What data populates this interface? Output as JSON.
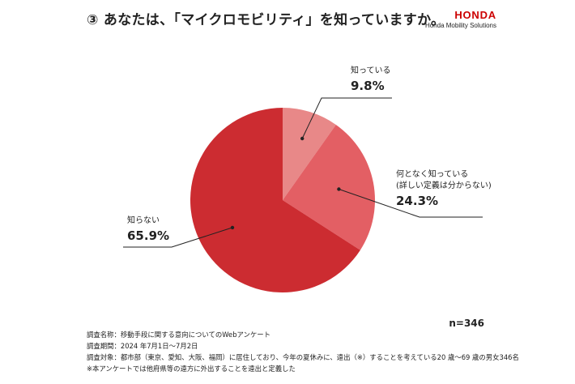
{
  "title": "③ あなたは、「マイクロモビリティ」を知っていますか。",
  "brand": {
    "logo": "HONDA",
    "subtitle": "Honda Mobility Solutions"
  },
  "chart_data": {
    "type": "pie",
    "title": "③ あなたは、「マイクロモビリティ」を知っていますか。",
    "categories": [
      "知っている",
      "何となく知っている\n(詳しい定義は分からない)",
      "知らない"
    ],
    "values": [
      9.8,
      24.3,
      65.9
    ],
    "value_labels": [
      "9.8%",
      "24.3%",
      "65.9%"
    ],
    "colors": [
      "#e88888",
      "#e35f64",
      "#cc2c31"
    ],
    "start": "12 o'clock, clockwise",
    "legend": "none (callout labels)"
  },
  "sample_size": "n=346",
  "notes": [
    "調査名称：移動手段に関する意向についてのWebアンケート",
    "調査期間：2024 年7月1日〜7月2日",
    "調査対象：都市部（東京、愛知、大阪、福岡）に居住しており、今年の夏休みに、遠出（※）することを考えている20 歳〜69 歳の男女346名",
    "※本アンケートでは他府県等の遠方に外出することを遠出と定義した"
  ]
}
